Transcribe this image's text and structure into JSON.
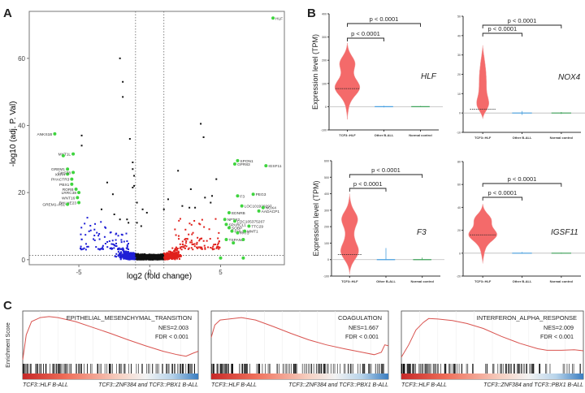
{
  "panels": {
    "a": "A",
    "b": "B",
    "c": "C"
  },
  "chart_data": [
    {
      "id": "A",
      "type": "scatter",
      "title": "",
      "xlabel": "log2 (fold change)",
      "ylabel": "-log10 (adj. P. Val)",
      "xlim": [
        -8.5,
        9.5
      ],
      "ylim": [
        -1.5,
        74
      ],
      "xticks": [
        -5,
        0,
        5
      ],
      "yticks": [
        0,
        20,
        40,
        60
      ],
      "fc_cutoff": [
        -1,
        1
      ],
      "p_cutoff": 1.3,
      "colors": {
        "down": "#1f1fd6",
        "ns": "#111111",
        "up": "#e0201b",
        "highlight": "#3fd43f"
      },
      "black_points": [
        [
          -2.1,
          60
        ],
        [
          -1.9,
          53
        ],
        [
          -1.9,
          48.5
        ],
        [
          -1.4,
          36
        ],
        [
          -4.8,
          37
        ],
        [
          -4.8,
          34
        ],
        [
          -3,
          23
        ],
        [
          -2.6,
          19.5
        ],
        [
          -1.2,
          29
        ],
        [
          -1.2,
          27
        ],
        [
          -1.1,
          25
        ],
        [
          -1.1,
          22
        ],
        [
          -1.2,
          21.5
        ],
        [
          -0.9,
          17
        ],
        [
          -0.5,
          15
        ],
        [
          -0.2,
          14
        ],
        [
          -3.4,
          15
        ],
        [
          -2.5,
          13.5
        ],
        [
          -2.1,
          12
        ],
        [
          -1.6,
          12
        ],
        [
          -1.5,
          11
        ],
        [
          -0.9,
          11
        ],
        [
          -0.6,
          10
        ],
        [
          3.6,
          40.5
        ],
        [
          3.8,
          36.5
        ],
        [
          2,
          26.5
        ],
        [
          2.9,
          21
        ],
        [
          4.7,
          24
        ],
        [
          1.3,
          18
        ],
        [
          2.3,
          16
        ],
        [
          1,
          15
        ],
        [
          3.9,
          18.5
        ],
        [
          4.4,
          19
        ],
        [
          4.3,
          17
        ],
        [
          2.8,
          15.5
        ],
        [
          3.2,
          15.5
        ]
      ],
      "highlight_genes": [
        {
          "name": "HLF",
          "x": 8.7,
          "y": 72
        },
        {
          "name": "ANKS1B",
          "x": -6.7,
          "y": 37.5
        },
        {
          "name": "MYT1L",
          "x": -5.4,
          "y": 31.5
        },
        {
          "name": "",
          "x": -6.1,
          "y": 31
        },
        {
          "name": "GREM1",
          "x": -5.8,
          "y": 27
        },
        {
          "name": "XKR4",
          "x": -5.8,
          "y": 25.5
        },
        {
          "name": "CHST8",
          "x": -5.4,
          "y": 26
        },
        {
          "name": "PHACTR3",
          "x": -5.5,
          "y": 24
        },
        {
          "name": "PBX1",
          "x": -5.5,
          "y": 22.5
        },
        {
          "name": "RORB",
          "x": -5.2,
          "y": 21
        },
        {
          "name": "LRRC38",
          "x": -5.0,
          "y": 20
        },
        {
          "name": "WNT16",
          "x": -5.1,
          "y": 18.5
        },
        {
          "name": "BHLHE23",
          "x": -5.0,
          "y": 17
        },
        {
          "name": "GREM1-AS1",
          "x": -5.8,
          "y": 16.5
        },
        {
          "name": "SPON1",
          "x": 6.2,
          "y": 29.5
        },
        {
          "name": "GPR83",
          "x": 6.0,
          "y": 28.5
        },
        {
          "name": "IGSF11",
          "x": 8.2,
          "y": 28
        },
        {
          "name": "F3",
          "x": 6.2,
          "y": 19
        },
        {
          "name": "PEG3",
          "x": 7.3,
          "y": 19.5
        },
        {
          "name": "LOC101929297",
          "x": 6.5,
          "y": 16
        },
        {
          "name": "NOX4",
          "x": 8.0,
          "y": 15.5
        },
        {
          "name": "AADACP1",
          "x": 7.7,
          "y": 14.5
        },
        {
          "name": "EDNRB",
          "x": 5.6,
          "y": 14
        },
        {
          "name": "NPTX2",
          "x": 5.3,
          "y": 12
        },
        {
          "name": "LOC105375267",
          "x": 6.0,
          "y": 11.5
        },
        {
          "name": "SPARCL1",
          "x": 5.4,
          "y": 10.5
        },
        {
          "name": "SOBP",
          "x": 5.6,
          "y": 9.5
        },
        {
          "name": "TTC29",
          "x": 7.0,
          "y": 10
        },
        {
          "name": "FHL2",
          "x": 5.8,
          "y": 8.5
        },
        {
          "name": "FAT3",
          "x": 6.2,
          "y": 8
        },
        {
          "name": "MMT1",
          "x": 6.7,
          "y": 8.5
        },
        {
          "name": "TSPAN6",
          "x": 5.4,
          "y": 6
        },
        {
          "name": "",
          "x": 5.9,
          "y": 5
        },
        {
          "name": "",
          "x": 6.6,
          "y": 6
        },
        {
          "name": "",
          "x": 5.0,
          "y": 0.5
        },
        {
          "name": "",
          "x": 6.6,
          "y": 0.5
        }
      ]
    },
    {
      "id": "B1",
      "type": "violin",
      "gene": "HLF",
      "ylabel": "Expression level (TPM)",
      "categories": [
        "TCF3::HLF",
        "Other B-ALL",
        "Normal control"
      ],
      "ylim": [
        -100,
        400
      ],
      "yticks": [
        -100,
        0,
        100,
        200,
        300,
        400
      ],
      "medians": [
        78,
        0,
        0
      ],
      "ranges": [
        [
          -55,
          275
        ],
        [
          -3,
          4
        ],
        [
          -2,
          3
        ]
      ],
      "comparisons": [
        {
          "label": "p < 0.0001",
          "from": 0,
          "to": 1
        },
        {
          "label": "p < 0.0001",
          "from": 0,
          "to": 2
        }
      ]
    },
    {
      "id": "B2",
      "type": "violin",
      "gene": "NOX4",
      "ylabel": "",
      "categories": [
        "TCF3::HLF",
        "Other B-ALL",
        "Normal control"
      ],
      "ylim": [
        -10,
        50
      ],
      "yticks": [
        -10,
        0,
        10,
        20,
        30,
        40,
        50
      ],
      "medians": [
        2,
        0,
        0
      ],
      "ranges": [
        [
          -3,
          35
        ],
        [
          -1,
          1
        ],
        [
          -0.5,
          0.5
        ]
      ],
      "comparisons": [
        {
          "label": "p < 0.0001",
          "from": 0,
          "to": 1
        },
        {
          "label": "p < 0.0001",
          "from": 0,
          "to": 2
        }
      ]
    },
    {
      "id": "B3",
      "type": "violin",
      "gene": "F3",
      "ylabel": "Expression level (TPM)",
      "categories": [
        "TCF3::HLF",
        "Other B-ALL",
        "Normal control"
      ],
      "ylim": [
        -100,
        600
      ],
      "yticks": [
        -100,
        0,
        100,
        200,
        300,
        400,
        500,
        600
      ],
      "medians": [
        30,
        0,
        0
      ],
      "ranges": [
        [
          -90,
          400
        ],
        [
          -2,
          70
        ],
        [
          -2,
          12
        ]
      ],
      "comparisons": [
        {
          "label": "p < 0.0001",
          "from": 0,
          "to": 1
        },
        {
          "label": "p < 0.0001",
          "from": 0,
          "to": 2
        }
      ]
    },
    {
      "id": "B4",
      "type": "violin",
      "gene": "IGSF11",
      "ylabel": "",
      "categories": [
        "TCF3::HLF",
        "Other B-ALL",
        "Normal control"
      ],
      "ylim": [
        -20,
        80
      ],
      "yticks": [
        -20,
        0,
        20,
        40,
        60,
        80
      ],
      "medians": [
        16,
        0,
        0
      ],
      "ranges": [
        [
          -9,
          43
        ],
        [
          -0.5,
          1
        ],
        [
          -0.5,
          0.5
        ]
      ],
      "comparisons": [
        {
          "label": "p < 0.0001",
          "from": 0,
          "to": 1
        },
        {
          "label": "p < 0.0001",
          "from": 0,
          "to": 2
        }
      ]
    },
    {
      "id": "C1",
      "type": "line",
      "title": "EPITHELIAL_MESENCHYMAL_TRANSITION",
      "ylabel": "Enrichment Score",
      "nes": "NES=2.003",
      "fdr": "FDR < 0.001",
      "left_label": "TCF3::HLF B-ALL",
      "right_label": "TCF3::ZNF384 and TCF3::PBX1 B-ALL",
      "es_curve": [
        [
          0,
          0.05
        ],
        [
          0.02,
          0.55
        ],
        [
          0.05,
          0.82
        ],
        [
          0.1,
          0.9
        ],
        [
          0.15,
          0.92
        ],
        [
          0.2,
          0.9
        ],
        [
          0.3,
          0.82
        ],
        [
          0.4,
          0.7
        ],
        [
          0.5,
          0.58
        ],
        [
          0.6,
          0.45
        ],
        [
          0.7,
          0.33
        ],
        [
          0.8,
          0.22
        ],
        [
          0.88,
          0.15
        ],
        [
          0.93,
          0.12
        ],
        [
          0.97,
          0.18
        ],
        [
          1,
          0.22
        ]
      ]
    },
    {
      "id": "C2",
      "type": "line",
      "title": "COAGULATION",
      "ylabel": "",
      "nes": "NES=1.667",
      "fdr": "FDR < 0.001",
      "left_label": "TCF3::HLF B-ALL",
      "right_label": "TCF3::ZNF384 and TCF3::PBX1 B-ALL",
      "es_curve": [
        [
          0,
          0.5
        ],
        [
          0.02,
          0.75
        ],
        [
          0.05,
          0.85
        ],
        [
          0.1,
          0.87
        ],
        [
          0.17,
          0.9
        ],
        [
          0.25,
          0.85
        ],
        [
          0.35,
          0.72
        ],
        [
          0.45,
          0.58
        ],
        [
          0.55,
          0.45
        ],
        [
          0.65,
          0.35
        ],
        [
          0.75,
          0.27
        ],
        [
          0.85,
          0.2
        ],
        [
          0.92,
          0.15
        ],
        [
          0.96,
          0.2
        ],
        [
          0.98,
          0.35
        ],
        [
          1,
          0.33
        ]
      ]
    },
    {
      "id": "C3",
      "type": "line",
      "title": "INTERFERON_ALPHA_RESPONSE",
      "ylabel": "",
      "nes": "NES=2.009",
      "fdr": "FDR < 0.001",
      "left_label": "TCF3::HLF B-ALL",
      "right_label": "TCF3::ZNF384 and TCF3::PBX1 B-ALL",
      "es_curve": [
        [
          0,
          0.1
        ],
        [
          0.04,
          0.35
        ],
        [
          0.08,
          0.65
        ],
        [
          0.12,
          0.8
        ],
        [
          0.15,
          0.88
        ],
        [
          0.2,
          0.87
        ],
        [
          0.28,
          0.84
        ],
        [
          0.36,
          0.78
        ],
        [
          0.45,
          0.68
        ],
        [
          0.55,
          0.52
        ],
        [
          0.65,
          0.38
        ],
        [
          0.75,
          0.27
        ],
        [
          0.8,
          0.24
        ],
        [
          0.88,
          0.24
        ],
        [
          0.95,
          0.25
        ],
        [
          1,
          0.23
        ]
      ]
    }
  ]
}
